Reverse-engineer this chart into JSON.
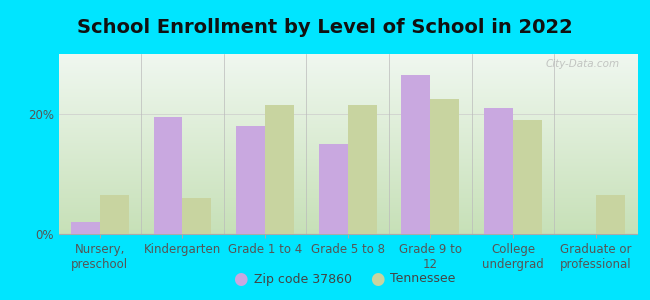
{
  "title": "School Enrollment by Level of School in 2022",
  "categories": [
    "Nursery,\npreschool",
    "Kindergarten",
    "Grade 1 to 4",
    "Grade 5 to 8",
    "Grade 9 to\n12",
    "College\nundergrad",
    "Graduate or\nprofessional"
  ],
  "zip_values": [
    2.0,
    19.5,
    18.0,
    15.0,
    26.5,
    21.0,
    0.0
  ],
  "state_values": [
    6.5,
    6.0,
    21.5,
    21.5,
    22.5,
    19.0,
    6.5
  ],
  "zip_color": "#c9a8e0",
  "state_color": "#c8d4a0",
  "background_outer": "#00e5ff",
  "ylabel_ticks": [
    "0%",
    "20%"
  ],
  "yticks": [
    0,
    20
  ],
  "ylim": [
    0,
    30
  ],
  "legend_zip_label": "Zip code 37860",
  "legend_state_label": "Tennessee",
  "watermark": "City-Data.com",
  "title_fontsize": 14,
  "tick_fontsize": 8.5,
  "legend_fontsize": 9
}
